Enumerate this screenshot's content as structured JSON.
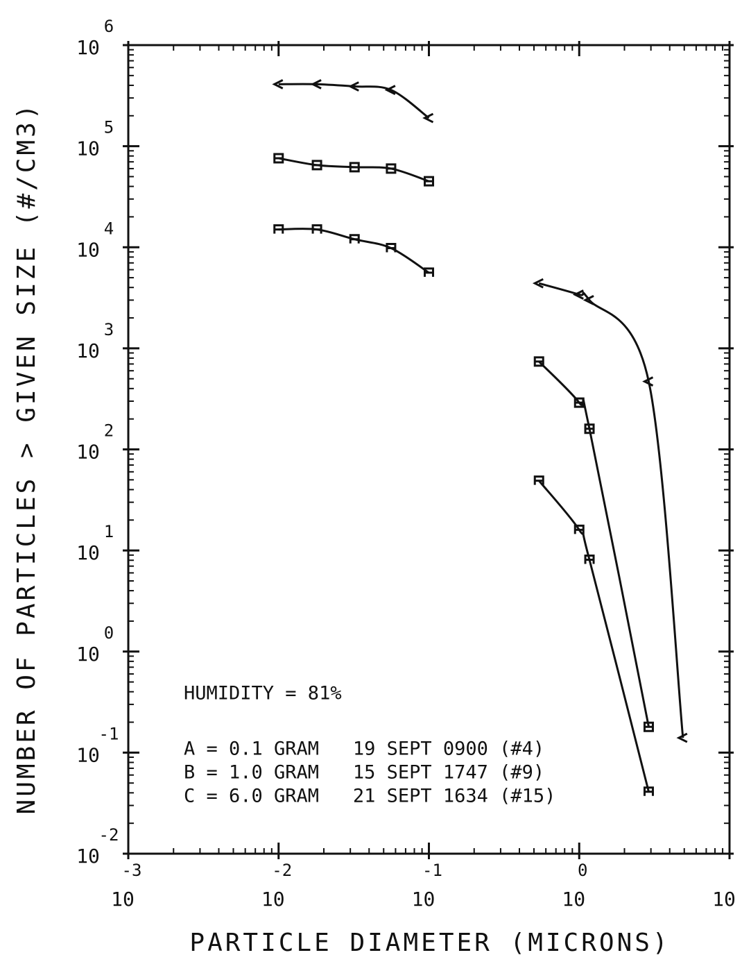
{
  "chart_data": {
    "type": "line",
    "x_label": "PARTICLE DIAMETER (MICRONS)",
    "y_label": "NUMBER OF PARTICLES > GIVEN SIZE (#/CM3)",
    "annotation": "HUMIDITY = 81%",
    "xscale": "log",
    "yscale": "log",
    "xlim": [
      0.001,
      10
    ],
    "ylim": [
      0.01,
      1000000
    ],
    "xticks": [
      {
        "value": 0.001,
        "label": "10",
        "exponent": "-3"
      },
      {
        "value": 0.01,
        "label": "10",
        "exponent": "-2"
      },
      {
        "value": 0.1,
        "label": "10",
        "exponent": "-1"
      },
      {
        "value": 1,
        "label": "10",
        "exponent": "0"
      },
      {
        "value": 10,
        "label": "10"
      }
    ],
    "yticks": [
      {
        "value": 0.01,
        "label": "10",
        "exponent": "-2"
      },
      {
        "value": 0.1,
        "label": "10",
        "exponent": "-1"
      },
      {
        "value": 1,
        "label": "10",
        "exponent": "0"
      },
      {
        "value": 10,
        "label": "10",
        "exponent": "1"
      },
      {
        "value": 100,
        "label": "10",
        "exponent": "2"
      },
      {
        "value": 1000,
        "label": "10",
        "exponent": "3"
      },
      {
        "value": 10000,
        "label": "10",
        "exponent": "4"
      },
      {
        "value": 100000,
        "label": "10",
        "exponent": "5"
      },
      {
        "value": 1000000,
        "label": "10",
        "exponent": "6"
      }
    ],
    "x": [
      0.01,
      0.018,
      0.032,
      0.056,
      0.1,
      0.54,
      1.0,
      1.17,
      2.9,
      4.9
    ],
    "series": [
      {
        "name": "A = 0.1 GRAM   19 SEPT 0900 (#4)",
        "marker": "A",
        "color": "#111111",
        "values": [
          15000,
          15000,
          12000,
          9800,
          5600,
          49,
          16,
          8.1,
          0.041,
          null
        ]
      },
      {
        "name": "B = 1.0 GRAM   15 SEPT 1747 (#9)",
        "marker": "B",
        "color": "#111111",
        "values": [
          76000,
          65000,
          62000,
          60000,
          45000,
          740,
          290,
          160,
          0.18,
          null
        ]
      },
      {
        "name": "C = 6.0 GRAM   21 SEPT 1634 (#15)",
        "marker": "C",
        "color": "#111111",
        "values": [
          410000,
          410000,
          390000,
          360000,
          190000,
          4400,
          3400,
          3000,
          470,
          0.14
        ]
      }
    ]
  }
}
